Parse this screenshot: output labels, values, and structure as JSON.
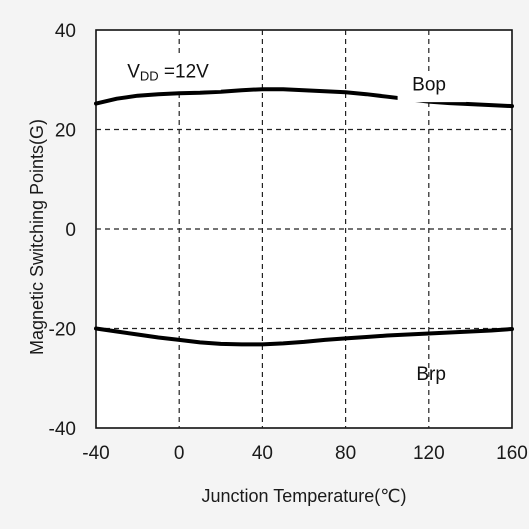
{
  "chart_data": {
    "type": "line",
    "title": "",
    "xlabel": "Junction Temperature(℃)",
    "ylabel": "Magnetic Switching Points(G)",
    "xlim": [
      -40,
      160
    ],
    "ylim": [
      -40,
      40
    ],
    "xticks": [
      -40,
      0,
      40,
      80,
      120,
      160
    ],
    "yticks": [
      40,
      20,
      0,
      -20,
      -40
    ],
    "grid": true,
    "legend": "none",
    "condition_label": {
      "prefix": "V",
      "subscript": "DD",
      "suffix": " =12V"
    },
    "series": [
      {
        "name": "Bop",
        "color": "#000000",
        "x": [
          -40,
          -30,
          -20,
          -10,
          0,
          10,
          20,
          30,
          40,
          50,
          60,
          70,
          80,
          90,
          100,
          110,
          120,
          130,
          140,
          150,
          160
        ],
        "y": [
          25.2,
          26.2,
          26.8,
          27.1,
          27.3,
          27.4,
          27.6,
          27.9,
          28.1,
          28.1,
          27.9,
          27.7,
          27.5,
          27.1,
          26.6,
          26.1,
          25.6,
          25.3,
          25.1,
          24.9,
          24.7
        ]
      },
      {
        "name": "Brp",
        "color": "#000000",
        "x": [
          -40,
          -30,
          -20,
          -10,
          0,
          10,
          20,
          30,
          40,
          50,
          60,
          70,
          80,
          90,
          100,
          110,
          120,
          130,
          140,
          150,
          160
        ],
        "y": [
          -20.0,
          -20.6,
          -21.2,
          -21.8,
          -22.3,
          -22.8,
          -23.1,
          -23.2,
          -23.2,
          -23.0,
          -22.7,
          -22.3,
          -22.0,
          -21.7,
          -21.4,
          -21.2,
          -21.0,
          -20.8,
          -20.6,
          -20.4,
          -20.1
        ]
      }
    ]
  }
}
